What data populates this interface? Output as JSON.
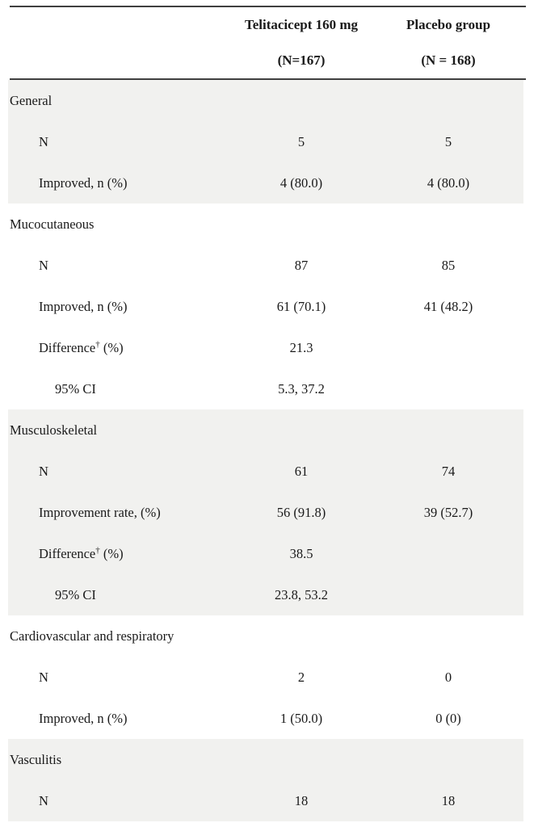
{
  "table": {
    "columns": [
      {
        "line1": "Telitacicept 160 mg",
        "line2": "(N=167)"
      },
      {
        "line1": "Placebo group",
        "line2": "(N = 168)"
      }
    ],
    "sections": [
      {
        "name": "General",
        "shaded": true,
        "rows": [
          {
            "label": "N",
            "indent": 1,
            "col1": "5",
            "col2": "5"
          },
          {
            "label": "Improved, n (%)",
            "indent": 1,
            "col1": "4 (80.0)",
            "col2": "4 (80.0)"
          }
        ]
      },
      {
        "name": "Mucocutaneous",
        "shaded": false,
        "rows": [
          {
            "label": "N",
            "indent": 1,
            "col1": "87",
            "col2": "85"
          },
          {
            "label": "Improved, n (%)",
            "indent": 1,
            "col1": "61 (70.1)",
            "col2": "41 (48.2)"
          },
          {
            "label": "Difference",
            "sup": "†",
            "label_suffix": " (%)",
            "indent": 1,
            "col1": "21.3",
            "col2": ""
          },
          {
            "label": "95% CI",
            "indent": 2,
            "col1": "5.3, 37.2",
            "col2": ""
          }
        ]
      },
      {
        "name": "Musculoskeletal",
        "shaded": true,
        "rows": [
          {
            "label": "N",
            "indent": 1,
            "col1": "61",
            "col2": "74"
          },
          {
            "label": "Improvement rate, (%)",
            "indent": 1,
            "col1": "56 (91.8)",
            "col2": "39 (52.7)"
          },
          {
            "label": "Difference",
            "sup": "†",
            "label_suffix": " (%)",
            "indent": 1,
            "col1": "38.5",
            "col2": ""
          },
          {
            "label": "95% CI",
            "indent": 2,
            "col1": "23.8, 53.2",
            "col2": ""
          }
        ]
      },
      {
        "name": "Cardiovascular and respiratory",
        "shaded": false,
        "rows": [
          {
            "label": "N",
            "indent": 1,
            "col1": "2",
            "col2": "0"
          },
          {
            "label": "Improved, n (%)",
            "indent": 1,
            "col1": "1 (50.0)",
            "col2": "0 (0)"
          }
        ]
      },
      {
        "name": "Vasculitis",
        "shaded": true,
        "rows": [
          {
            "label": "N",
            "indent": 1,
            "col1": "18",
            "col2": "18"
          }
        ]
      }
    ],
    "colors": {
      "section_shade": "#f1f1ef",
      "rule": "#3f3f3f",
      "text": "#1a1a1a"
    }
  }
}
